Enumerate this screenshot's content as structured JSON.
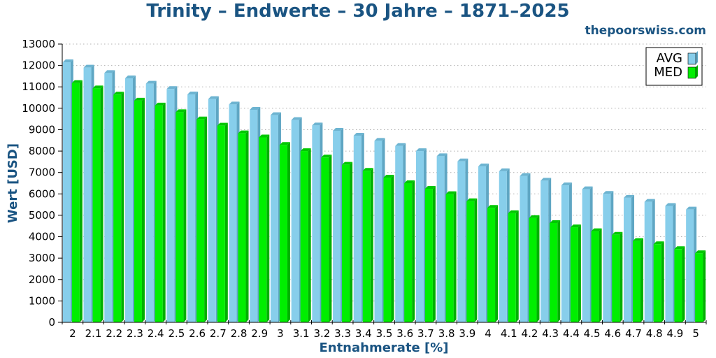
{
  "site": "thepoorswiss.com",
  "colors": {
    "avg": "#87ceeb",
    "avg_side": "#5fa6c3",
    "avg_top": "#6db4d1",
    "med": "#00ee00",
    "med_side": "#00b000",
    "med_top": "#00c800",
    "title": "#1a5482"
  },
  "chart_data": {
    "type": "bar",
    "title": "Trinity – Endwerte – 30 Jahre – 1871–2025",
    "xlabel": "Entnahmerate [%]",
    "ylabel": "Wert [USD]",
    "ylim": [
      0,
      13000
    ],
    "yticks": [
      0,
      1000,
      2000,
      3000,
      4000,
      5000,
      6000,
      7000,
      8000,
      9000,
      10000,
      11000,
      12000,
      13000
    ],
    "grid": true,
    "legend_position": "top-right",
    "categories": [
      "2",
      "2.1",
      "2.2",
      "2.3",
      "2.4",
      "2.5",
      "2.6",
      "2.7",
      "2.8",
      "2.9",
      "3",
      "3.1",
      "3.2",
      "3.3",
      "3.4",
      "3.5",
      "3.6",
      "3.7",
      "3.8",
      "3.9",
      "4",
      "4.1",
      "4.2",
      "4.3",
      "4.4",
      "4.5",
      "4.6",
      "4.7",
      "4.8",
      "4.9",
      "5"
    ],
    "series": [
      {
        "name": "AVG",
        "values": [
          12150,
          11900,
          11650,
          11400,
          11150,
          10900,
          10650,
          10430,
          10180,
          9930,
          9680,
          9450,
          9200,
          8950,
          8720,
          8480,
          8240,
          8000,
          7760,
          7520,
          7290,
          7060,
          6840,
          6620,
          6400,
          6220,
          6000,
          5820,
          5630,
          5440,
          5270
        ]
      },
      {
        "name": "MED",
        "values": [
          11180,
          10930,
          10640,
          10360,
          10130,
          9820,
          9480,
          9190,
          8830,
          8640,
          8290,
          8000,
          7700,
          7360,
          7080,
          6760,
          6500,
          6240,
          5990,
          5660,
          5350,
          5100,
          4870,
          4640,
          4440,
          4260,
          4090,
          3800,
          3650,
          3420,
          3230
        ]
      }
    ]
  }
}
